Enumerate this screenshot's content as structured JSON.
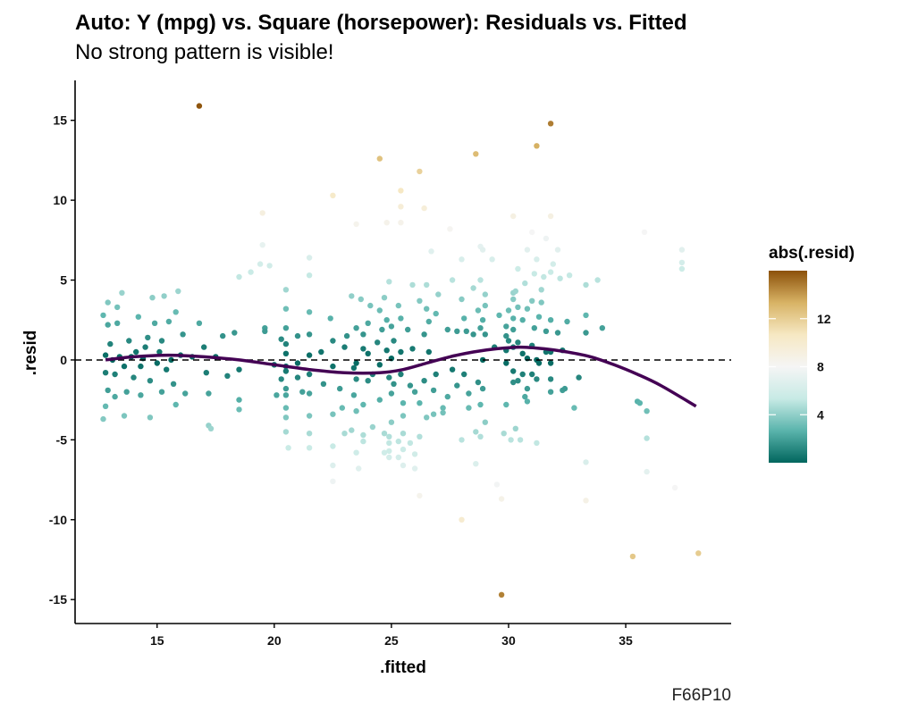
{
  "chart_data": {
    "type": "scatter",
    "title": "Auto: Y (mpg) vs. Square (horsepower): Residuals vs. Fitted",
    "subtitle": "No strong pattern is visible!",
    "xlabel": ".fitted",
    "ylabel": ".resid",
    "caption": "F66P10",
    "xlim": [
      11.5,
      39.5
    ],
    "ylim": [
      -16.5,
      17.5
    ],
    "x_ticks": [
      15,
      20,
      25,
      30,
      35
    ],
    "y_ticks": [
      -15,
      -10,
      -5,
      0,
      5,
      10,
      15
    ],
    "reference_line": {
      "y": 0,
      "style": "dashed"
    },
    "legend": {
      "title": "abs(.resid)",
      "placement": "right",
      "ticks": [
        4,
        8,
        12
      ],
      "range": [
        0,
        16
      ],
      "colors": [
        "#01665e",
        "#5ab4ac",
        "#c7eae5",
        "#f5f5f5",
        "#f6e8c3",
        "#d8b365",
        "#8c510a"
      ]
    },
    "smooth_color": "#440154",
    "smooth": {
      "x": [
        12.8,
        14.0,
        15.5,
        17.0,
        18.5,
        20.0,
        21.5,
        23.0,
        24.5,
        25.5,
        26.5,
        27.5,
        28.5,
        29.5,
        30.5,
        31.5,
        32.5,
        33.5,
        34.5,
        35.5,
        36.5,
        38.0
      ],
      "y": [
        0.0,
        0.2,
        0.3,
        0.2,
        0.0,
        -0.3,
        -0.6,
        -0.8,
        -0.8,
        -0.6,
        -0.2,
        0.2,
        0.5,
        0.7,
        0.8,
        0.7,
        0.5,
        0.2,
        -0.3,
        -0.9,
        -1.6,
        -2.9
      ]
    },
    "points": [
      [
        12.7,
        2.8
      ],
      [
        12.8,
        0.3
      ],
      [
        12.8,
        -0.8
      ],
      [
        12.9,
        3.6
      ],
      [
        12.9,
        2.2
      ],
      [
        12.9,
        -1.9
      ],
      [
        12.7,
        -3.7
      ],
      [
        12.8,
        -2.9
      ],
      [
        13.0,
        1.0
      ],
      [
        13.1,
        0.0
      ],
      [
        13.2,
        -0.9
      ],
      [
        13.3,
        2.3
      ],
      [
        13.2,
        -2.3
      ],
      [
        13.3,
        3.3
      ],
      [
        13.4,
        0.2
      ],
      [
        13.5,
        4.2
      ],
      [
        13.6,
        -0.4
      ],
      [
        13.7,
        -2.0
      ],
      [
        13.6,
        -3.5
      ],
      [
        13.8,
        1.2
      ],
      [
        13.9,
        0.2
      ],
      [
        14.0,
        -1.1
      ],
      [
        14.1,
        0.5
      ],
      [
        14.2,
        2.7
      ],
      [
        14.3,
        -0.4
      ],
      [
        14.3,
        -2.2
      ],
      [
        14.4,
        0.1
      ],
      [
        14.5,
        0.8
      ],
      [
        14.6,
        1.4
      ],
      [
        14.7,
        -1.3
      ],
      [
        14.7,
        -3.6
      ],
      [
        14.8,
        3.9
      ],
      [
        14.9,
        2.3
      ],
      [
        15.0,
        -0.2
      ],
      [
        15.1,
        0.5
      ],
      [
        15.2,
        1.2
      ],
      [
        15.2,
        -2.0
      ],
      [
        15.3,
        4.0
      ],
      [
        15.4,
        -0.6
      ],
      [
        15.5,
        2.4
      ],
      [
        15.6,
        0.0
      ],
      [
        15.7,
        -1.5
      ],
      [
        15.8,
        3.0
      ],
      [
        15.8,
        -2.8
      ],
      [
        15.9,
        4.3
      ],
      [
        16.0,
        0.3
      ],
      [
        16.1,
        1.6
      ],
      [
        16.2,
        -2.1
      ],
      [
        16.5,
        0.2
      ],
      [
        16.8,
        15.9
      ],
      [
        16.8,
        2.3
      ],
      [
        17.0,
        0.8
      ],
      [
        17.1,
        -0.8
      ],
      [
        17.2,
        -2.1
      ],
      [
        17.2,
        -4.1
      ],
      [
        17.3,
        -4.3
      ],
      [
        17.5,
        0.2
      ],
      [
        17.8,
        1.5
      ],
      [
        18.0,
        -1.0
      ],
      [
        18.3,
        1.7
      ],
      [
        18.5,
        -0.6
      ],
      [
        18.5,
        -2.5
      ],
      [
        18.5,
        -3.1
      ],
      [
        18.5,
        5.2
      ],
      [
        19.0,
        5.5
      ],
      [
        19.4,
        6.0
      ],
      [
        19.5,
        7.2
      ],
      [
        19.5,
        9.2
      ],
      [
        19.6,
        2.0
      ],
      [
        19.6,
        1.8
      ],
      [
        19.8,
        5.9
      ],
      [
        20.0,
        -0.3
      ],
      [
        20.1,
        -2.2
      ],
      [
        20.3,
        1.3
      ],
      [
        20.3,
        -1.2
      ],
      [
        20.5,
        4.4
      ],
      [
        20.5,
        3.2
      ],
      [
        20.5,
        2.0
      ],
      [
        20.5,
        1.0
      ],
      [
        20.5,
        0.4
      ],
      [
        20.5,
        -0.4
      ],
      [
        20.5,
        -0.7
      ],
      [
        20.5,
        -1.8
      ],
      [
        20.5,
        -2.2
      ],
      [
        20.5,
        -3.0
      ],
      [
        20.5,
        -3.6
      ],
      [
        20.5,
        -4.5
      ],
      [
        20.6,
        -5.5
      ],
      [
        21.0,
        1.5
      ],
      [
        21.0,
        -0.2
      ],
      [
        21.0,
        -1.1
      ],
      [
        21.2,
        -2.0
      ],
      [
        21.5,
        6.4
      ],
      [
        21.5,
        5.3
      ],
      [
        21.5,
        3.0
      ],
      [
        21.5,
        1.6
      ],
      [
        21.5,
        0.3
      ],
      [
        21.5,
        -0.9
      ],
      [
        21.5,
        -2.1
      ],
      [
        21.5,
        -3.5
      ],
      [
        21.5,
        -4.6
      ],
      [
        21.5,
        -5.5
      ],
      [
        22.0,
        0.5
      ],
      [
        22.1,
        -1.5
      ],
      [
        22.4,
        2.6
      ],
      [
        22.5,
        1.2
      ],
      [
        22.5,
        -0.4
      ],
      [
        22.5,
        -3.4
      ],
      [
        22.5,
        -5.4
      ],
      [
        22.5,
        -6.6
      ],
      [
        22.5,
        -7.6
      ],
      [
        22.5,
        10.3
      ],
      [
        22.8,
        -1.8
      ],
      [
        22.9,
        -3.0
      ],
      [
        23.0,
        -4.6
      ],
      [
        23.0,
        0.8
      ],
      [
        23.1,
        1.5
      ],
      [
        23.3,
        4.0
      ],
      [
        23.3,
        -4.4
      ],
      [
        23.4,
        -0.5
      ],
      [
        23.4,
        -2.2
      ],
      [
        23.5,
        8.5
      ],
      [
        23.5,
        2.0
      ],
      [
        23.5,
        -0.2
      ],
      [
        23.5,
        -1.2
      ],
      [
        23.5,
        -3.2
      ],
      [
        23.5,
        -5.8
      ],
      [
        23.6,
        -6.8
      ],
      [
        23.7,
        3.8
      ],
      [
        23.8,
        1.6
      ],
      [
        23.8,
        0.7
      ],
      [
        23.8,
        -2.8
      ],
      [
        23.8,
        -4.7
      ],
      [
        23.8,
        -5.1
      ],
      [
        24.0,
        2.3
      ],
      [
        24.0,
        0.4
      ],
      [
        24.0,
        -1.3
      ],
      [
        24.1,
        3.4
      ],
      [
        24.2,
        -0.9
      ],
      [
        24.2,
        -4.2
      ],
      [
        24.4,
        1.1
      ],
      [
        24.5,
        12.6
      ],
      [
        24.5,
        3.1
      ],
      [
        24.5,
        -0.3
      ],
      [
        24.5,
        -2.5
      ],
      [
        24.6,
        1.9
      ],
      [
        24.7,
        -4.6
      ],
      [
        24.7,
        -5.8
      ],
      [
        24.7,
        3.9
      ],
      [
        24.8,
        2.5
      ],
      [
        24.8,
        0.6
      ],
      [
        24.8,
        8.6
      ],
      [
        24.9,
        4.9
      ],
      [
        24.9,
        -1.1
      ],
      [
        24.9,
        -5.2
      ],
      [
        24.9,
        -4.8
      ],
      [
        24.9,
        -5.7
      ],
      [
        24.9,
        -6.1
      ],
      [
        25.0,
        2.1
      ],
      [
        25.0,
        0.1
      ],
      [
        25.0,
        -2.1
      ],
      [
        25.0,
        -3.9
      ],
      [
        25.1,
        1.2
      ],
      [
        25.1,
        -1.5
      ],
      [
        25.3,
        3.4
      ],
      [
        25.3,
        -5.1
      ],
      [
        25.3,
        -6.1
      ],
      [
        25.4,
        10.6
      ],
      [
        25.4,
        9.6
      ],
      [
        25.4,
        8.6
      ],
      [
        25.4,
        2.6
      ],
      [
        25.4,
        0.5
      ],
      [
        25.4,
        -0.9
      ],
      [
        25.5,
        -2.7
      ],
      [
        25.5,
        -3.5
      ],
      [
        25.5,
        -4.6
      ],
      [
        25.5,
        -5.6
      ],
      [
        25.5,
        -6.6
      ],
      [
        25.7,
        1.9
      ],
      [
        25.8,
        -1.6
      ],
      [
        25.8,
        -5.2
      ],
      [
        25.9,
        4.7
      ],
      [
        25.9,
        0.7
      ],
      [
        26.0,
        -2.0
      ],
      [
        26.0,
        -5.9
      ],
      [
        26.0,
        -6.8
      ],
      [
        26.2,
        11.8
      ],
      [
        26.2,
        3.7
      ],
      [
        26.2,
        -2.7
      ],
      [
        26.2,
        -4.8
      ],
      [
        26.2,
        -8.5
      ],
      [
        26.4,
        9.5
      ],
      [
        26.4,
        1.6
      ],
      [
        26.4,
        -1.3
      ],
      [
        26.5,
        4.7
      ],
      [
        26.5,
        3.2
      ],
      [
        26.5,
        -3.6
      ],
      [
        26.6,
        2.4
      ],
      [
        26.6,
        0.5
      ],
      [
        26.7,
        6.8
      ],
      [
        26.8,
        -1.9
      ],
      [
        26.8,
        -3.4
      ],
      [
        26.9,
        2.9
      ],
      [
        26.9,
        -0.9
      ],
      [
        27.0,
        4.1
      ],
      [
        27.2,
        -3.0
      ],
      [
        27.2,
        -3.3
      ],
      [
        27.4,
        1.9
      ],
      [
        27.4,
        -2.3
      ],
      [
        27.5,
        8.2
      ],
      [
        27.6,
        5.0
      ],
      [
        27.6,
        -0.6
      ],
      [
        27.8,
        1.8
      ],
      [
        27.8,
        -1.6
      ],
      [
        28.0,
        6.3
      ],
      [
        28.0,
        3.8
      ],
      [
        28.0,
        -10.0
      ],
      [
        28.0,
        -5.0
      ],
      [
        28.1,
        2.6
      ],
      [
        28.1,
        -0.9
      ],
      [
        28.2,
        1.8
      ],
      [
        28.3,
        -2.1
      ],
      [
        28.3,
        -3.0
      ],
      [
        28.5,
        4.5
      ],
      [
        28.5,
        1.6
      ],
      [
        28.6,
        12.9
      ],
      [
        28.6,
        -4.5
      ],
      [
        28.6,
        -6.5
      ],
      [
        28.7,
        3.1
      ],
      [
        28.7,
        -1.4
      ],
      [
        28.8,
        7.1
      ],
      [
        28.8,
        5.0
      ],
      [
        28.8,
        2.0
      ],
      [
        28.8,
        -2.8
      ],
      [
        28.8,
        -4.8
      ],
      [
        28.9,
        6.9
      ],
      [
        28.9,
        2.5
      ],
      [
        28.9,
        0.0
      ],
      [
        28.9,
        -1.8
      ],
      [
        29.0,
        4.1
      ],
      [
        29.0,
        3.4
      ],
      [
        29.0,
        1.6
      ],
      [
        29.0,
        -3.9
      ],
      [
        29.3,
        6.3
      ],
      [
        29.4,
        0.8
      ],
      [
        29.5,
        -7.8
      ],
      [
        29.6,
        2.8
      ],
      [
        29.7,
        -14.7
      ],
      [
        29.7,
        -8.7
      ],
      [
        29.8,
        -4.6
      ],
      [
        29.9,
        2.1
      ],
      [
        29.9,
        1.5
      ],
      [
        29.9,
        0.6
      ],
      [
        29.9,
        -0.2
      ],
      [
        29.9,
        -2.8
      ],
      [
        30.0,
        3.1
      ],
      [
        30.0,
        1.2
      ],
      [
        30.1,
        -5.0
      ],
      [
        30.2,
        9.0
      ],
      [
        30.2,
        4.2
      ],
      [
        30.2,
        3.8
      ],
      [
        30.2,
        2.6
      ],
      [
        30.2,
        1.9
      ],
      [
        30.2,
        0.8
      ],
      [
        30.2,
        -0.7
      ],
      [
        30.2,
        -1.4
      ],
      [
        30.3,
        4.3
      ],
      [
        30.3,
        -4.3
      ],
      [
        30.4,
        5.7
      ],
      [
        30.4,
        3.3
      ],
      [
        30.4,
        1.1
      ],
      [
        30.4,
        -1.3
      ],
      [
        30.5,
        -5.0
      ],
      [
        30.6,
        2.5
      ],
      [
        30.6,
        0.4
      ],
      [
        30.6,
        -0.9
      ],
      [
        30.7,
        4.8
      ],
      [
        30.7,
        -2.3
      ],
      [
        30.8,
        6.9
      ],
      [
        30.8,
        3.2
      ],
      [
        30.8,
        0.1
      ],
      [
        30.8,
        -1.8
      ],
      [
        30.8,
        -2.6
      ],
      [
        31.0,
        8.0
      ],
      [
        31.0,
        3.7
      ],
      [
        31.0,
        0.9
      ],
      [
        31.0,
        -0.9
      ],
      [
        31.1,
        5.4
      ],
      [
        31.1,
        2.0
      ],
      [
        31.2,
        13.4
      ],
      [
        31.2,
        6.3
      ],
      [
        31.2,
        0.0
      ],
      [
        31.2,
        -1.2
      ],
      [
        31.2,
        -5.2
      ],
      [
        31.3,
        2.7
      ],
      [
        31.3,
        -0.2
      ],
      [
        31.4,
        4.4
      ],
      [
        31.4,
        3.6
      ],
      [
        31.5,
        5.2
      ],
      [
        31.6,
        7.6
      ],
      [
        31.6,
        1.8
      ],
      [
        31.6,
        0.5
      ],
      [
        31.8,
        14.8
      ],
      [
        31.8,
        9.0
      ],
      [
        31.8,
        5.5
      ],
      [
        31.8,
        2.5
      ],
      [
        31.8,
        0.5
      ],
      [
        31.8,
        -0.2
      ],
      [
        31.8,
        -1.2
      ],
      [
        31.8,
        -2.0
      ],
      [
        31.9,
        6.0
      ],
      [
        32.1,
        6.9
      ],
      [
        32.1,
        1.7
      ],
      [
        32.2,
        5.1
      ],
      [
        32.3,
        0.6
      ],
      [
        32.3,
        -1.9
      ],
      [
        32.4,
        -1.8
      ],
      [
        32.5,
        2.4
      ],
      [
        32.6,
        5.3
      ],
      [
        32.8,
        -3.0
      ],
      [
        33.0,
        -1.1
      ],
      [
        33.3,
        4.7
      ],
      [
        33.3,
        2.8
      ],
      [
        33.3,
        1.7
      ],
      [
        33.3,
        -6.4
      ],
      [
        33.3,
        -8.8
      ],
      [
        33.8,
        5.0
      ],
      [
        34.0,
        2.0
      ],
      [
        35.3,
        -12.3
      ],
      [
        35.5,
        -2.6
      ],
      [
        35.6,
        -2.7
      ],
      [
        35.8,
        8.0
      ],
      [
        35.9,
        -3.2
      ],
      [
        35.9,
        -4.9
      ],
      [
        35.9,
        -7.0
      ],
      [
        37.1,
        -8.0
      ],
      [
        37.4,
        6.9
      ],
      [
        37.4,
        6.1
      ],
      [
        37.4,
        5.7
      ],
      [
        38.1,
        -12.1
      ]
    ]
  }
}
